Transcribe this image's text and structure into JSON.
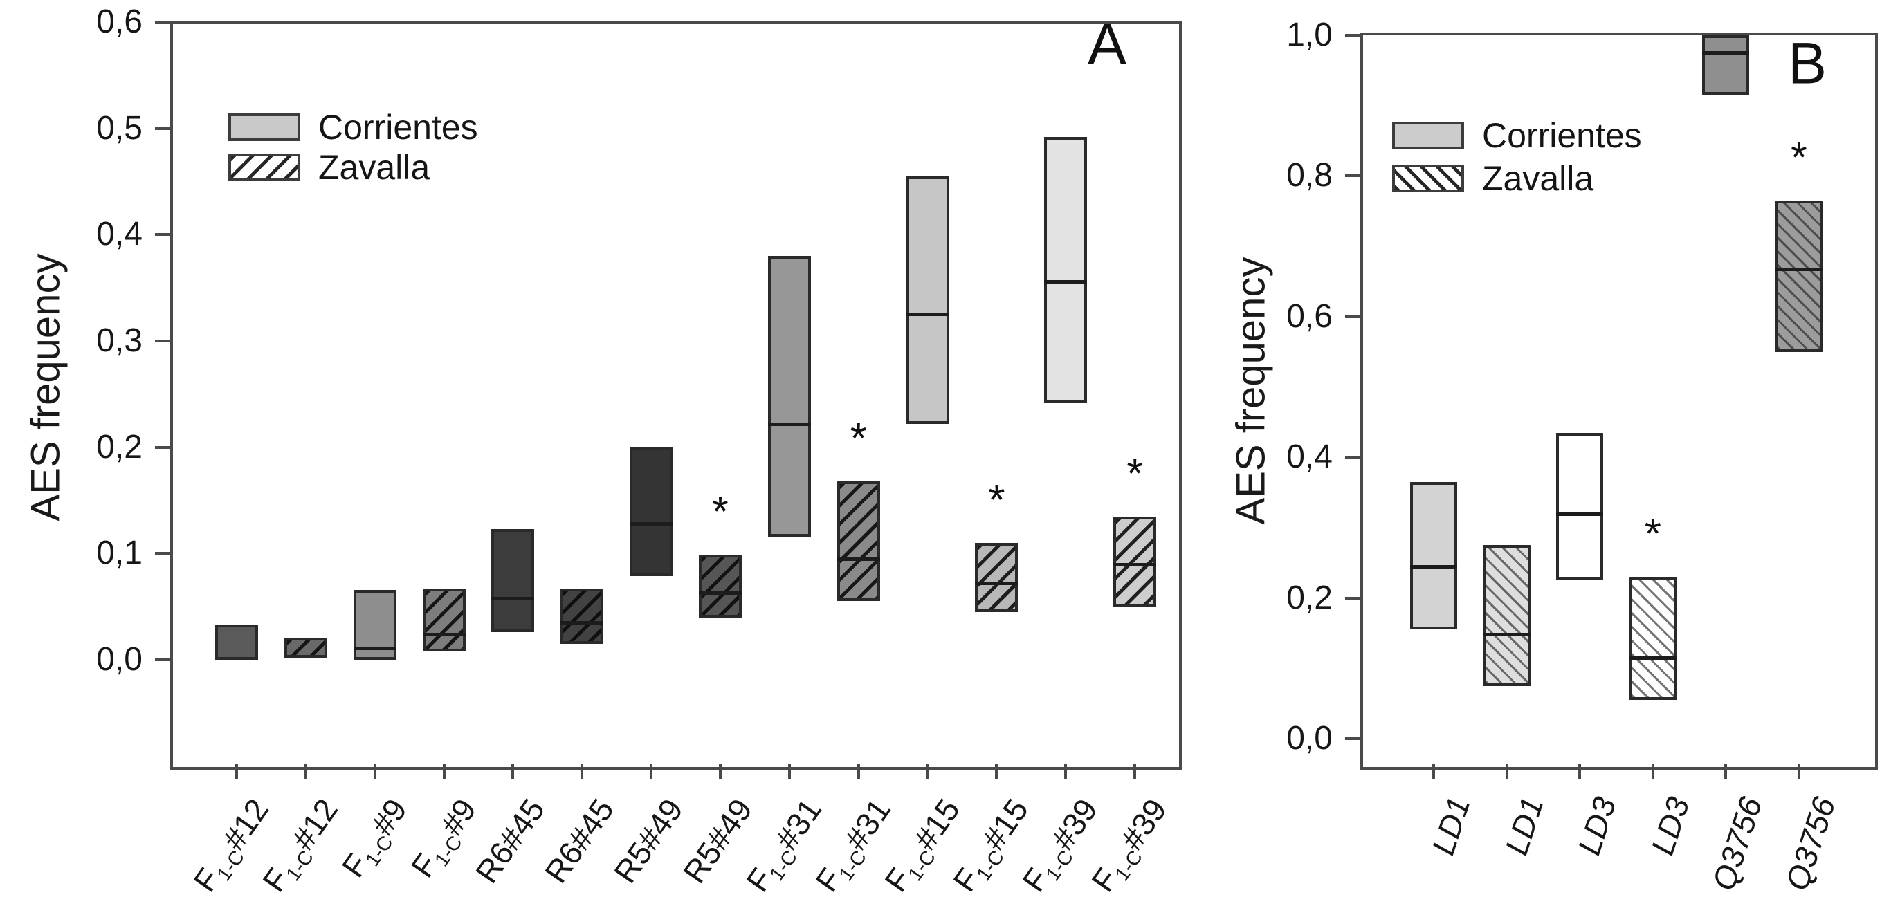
{
  "figure": {
    "background": "#ffffff",
    "frame_color": "#4a4a4a",
    "significance_marker": "*"
  },
  "chart_data": [
    {
      "type": "box",
      "panel_label": "A",
      "ylabel": "AES frequency",
      "ylim": [
        -0.098,
        0.6
      ],
      "grid": false,
      "ytick_values": [
        0.0,
        0.1,
        0.2,
        0.3,
        0.4,
        0.5,
        0.6
      ],
      "ytick_labels": [
        "0,0",
        "0,1",
        "0,2",
        "0,3",
        "0,4",
        "0,5",
        "0,6"
      ],
      "hatch_direction": "forward-slash",
      "legend_position": "upper-left-inside",
      "legend": [
        {
          "label": "Corrientes",
          "fill": "#c9c9c9",
          "hatch": false
        },
        {
          "label": "Zavalla",
          "fill": "#ffffff",
          "hatch": true
        }
      ],
      "boxes": [
        {
          "category": "F1-C#12",
          "label": {
            "base": "F",
            "sub": "1-C",
            "rest": "#12"
          },
          "series": "Corrientes",
          "low": 0.0,
          "median": null,
          "high": 0.033,
          "fill": "#5a5a5a",
          "hatch": false,
          "significant": false
        },
        {
          "category": "F1-C#12",
          "label": {
            "base": "F",
            "sub": "1-C",
            "rest": "#12"
          },
          "series": "Zavalla",
          "low": 0.002,
          "median": null,
          "high": 0.021,
          "fill": "#696969",
          "hatch": true,
          "significant": false
        },
        {
          "category": "F1-C#9",
          "label": {
            "base": "F",
            "sub": "1-C",
            "rest": "#9"
          },
          "series": "Corrientes",
          "low": 0.0,
          "median": 0.011,
          "high": 0.066,
          "fill": "#8e8e8e",
          "hatch": false,
          "significant": false
        },
        {
          "category": "F1-C#9",
          "label": {
            "base": "F",
            "sub": "1-C",
            "rest": "#9"
          },
          "series": "Zavalla",
          "low": 0.008,
          "median": 0.024,
          "high": 0.067,
          "fill": "#7d7d7d",
          "hatch": true,
          "significant": false
        },
        {
          "category": "R6#45",
          "label": {
            "base": "R6#45",
            "sub": "",
            "rest": ""
          },
          "series": "Corrientes",
          "low": 0.026,
          "median": 0.058,
          "high": 0.123,
          "fill": "#3c3c3c",
          "hatch": false,
          "significant": false
        },
        {
          "category": "R6#45",
          "label": {
            "base": "R6#45",
            "sub": "",
            "rest": ""
          },
          "series": "Zavalla",
          "low": 0.015,
          "median": 0.035,
          "high": 0.067,
          "fill": "#424242",
          "hatch": true,
          "significant": false
        },
        {
          "category": "R5#49",
          "label": {
            "base": "R5#49",
            "sub": "",
            "rest": ""
          },
          "series": "Corrientes",
          "low": 0.079,
          "median": 0.128,
          "high": 0.2,
          "fill": "#343434",
          "hatch": false,
          "significant": false
        },
        {
          "category": "R5#49",
          "label": {
            "base": "R5#49",
            "sub": "",
            "rest": ""
          },
          "series": "Zavalla",
          "low": 0.04,
          "median": 0.063,
          "high": 0.099,
          "fill": "#565656",
          "hatch": true,
          "significant": true
        },
        {
          "category": "F1-C#31",
          "label": {
            "base": "F",
            "sub": "1-C",
            "rest": "#31"
          },
          "series": "Corrientes",
          "low": 0.116,
          "median": 0.222,
          "high": 0.38,
          "fill": "#979797",
          "hatch": false,
          "significant": false
        },
        {
          "category": "F1-C#31",
          "label": {
            "base": "F",
            "sub": "1-C",
            "rest": "#31"
          },
          "series": "Zavalla",
          "low": 0.055,
          "median": 0.095,
          "high": 0.168,
          "fill": "#8a8a8a",
          "hatch": true,
          "significant": true
        },
        {
          "category": "F1-C#15",
          "label": {
            "base": "F",
            "sub": "1-C",
            "rest": "#15"
          },
          "series": "Corrientes",
          "low": 0.222,
          "median": 0.325,
          "high": 0.455,
          "fill": "#c6c6c6",
          "hatch": false,
          "significant": false
        },
        {
          "category": "F1-C#15",
          "label": {
            "base": "F",
            "sub": "1-C",
            "rest": "#15"
          },
          "series": "Zavalla",
          "low": 0.045,
          "median": 0.072,
          "high": 0.11,
          "fill": "#b8b8b8",
          "hatch": true,
          "significant": true
        },
        {
          "category": "F1-C#39",
          "label": {
            "base": "F",
            "sub": "1-C",
            "rest": "#39"
          },
          "series": "Corrientes",
          "low": 0.242,
          "median": 0.356,
          "high": 0.492,
          "fill": "#e3e3e3",
          "hatch": false,
          "significant": false
        },
        {
          "category": "F1-C#39",
          "label": {
            "base": "F",
            "sub": "1-C",
            "rest": "#39"
          },
          "series": "Zavalla",
          "low": 0.05,
          "median": 0.09,
          "high": 0.135,
          "fill": "#cdcdcd",
          "hatch": true,
          "significant": true
        }
      ]
    },
    {
      "type": "box",
      "panel_label": "B",
      "ylabel": "AES frequency",
      "ylim": [
        -0.036,
        1.0
      ],
      "grid": false,
      "ytick_values": [
        0.0,
        0.2,
        0.4,
        0.6,
        0.8,
        1.0
      ],
      "ytick_labels": [
        "0,0",
        "0,2",
        "0,4",
        "0,6",
        "0,8",
        "1,0"
      ],
      "hatch_direction": "back-slash",
      "legend_position": "upper-left-inside",
      "legend": [
        {
          "label": "Corrientes",
          "fill": "#cccccc",
          "hatch": false
        },
        {
          "label": "Zavalla",
          "fill": "#ffffff",
          "hatch": true
        }
      ],
      "boxes": [
        {
          "category": "LD1",
          "label": {
            "base": "LD1",
            "sub": "",
            "rest": ""
          },
          "series": "Corrientes",
          "low": 0.155,
          "median": 0.245,
          "high": 0.365,
          "fill": "#d3d3d3",
          "hatch": false,
          "significant": false
        },
        {
          "category": "LD1",
          "label": {
            "base": "LD1",
            "sub": "",
            "rest": ""
          },
          "series": "Zavalla",
          "low": 0.075,
          "median": 0.148,
          "high": 0.275,
          "fill": "#dedede",
          "hatch": true,
          "significant": false
        },
        {
          "category": "LD3",
          "label": {
            "base": "LD3",
            "sub": "",
            "rest": ""
          },
          "series": "Corrientes",
          "low": 0.225,
          "median": 0.32,
          "high": 0.435,
          "fill": "#ffffff",
          "hatch": false,
          "significant": false
        },
        {
          "category": "LD3",
          "label": {
            "base": "LD3",
            "sub": "",
            "rest": ""
          },
          "series": "Zavalla",
          "low": 0.055,
          "median": 0.115,
          "high": 0.23,
          "fill": "#ffffff",
          "hatch": true,
          "significant": true
        },
        {
          "category": "Q3756",
          "label": {
            "base": "Q3756",
            "sub": "",
            "rest": ""
          },
          "series": "Corrientes",
          "low": 0.915,
          "median": 0.975,
          "high": 1.0,
          "fill": "#8f8f8f",
          "hatch": false,
          "significant": false
        },
        {
          "category": "Q3756",
          "label": {
            "base": "Q3756",
            "sub": "",
            "rest": ""
          },
          "series": "Zavalla",
          "low": 0.55,
          "median": 0.668,
          "high": 0.765,
          "fill": "#9c9c9c",
          "hatch": true,
          "significant": true
        }
      ]
    }
  ]
}
